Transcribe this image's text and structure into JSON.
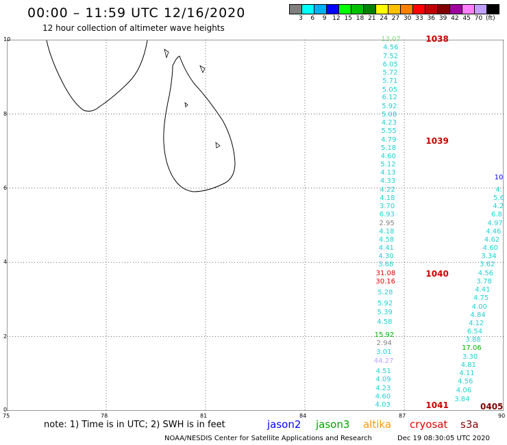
{
  "title": "00:00 – 11:59 UTC 12/16/2020",
  "subtitle": "12 hour collection of altimeter wave heights",
  "legend": {
    "colors": [
      "#808080",
      "#00ffff",
      "#00b0f0",
      "#0000ff",
      "#00ff00",
      "#00c000",
      "#008000",
      "#ffff00",
      "#ffc000",
      "#ff8000",
      "#ff0000",
      "#c00000",
      "#800000",
      "#a000a0",
      "#ff80ff",
      "#c0a0ff",
      "#000000"
    ],
    "labels": [
      "3",
      "6",
      "9",
      "12",
      "15",
      "18",
      "21",
      "24",
      "27",
      "30",
      "33",
      "36",
      "39",
      "42",
      "45",
      "70",
      "(ft)"
    ]
  },
  "axes": {
    "x_ticks": [
      "75",
      "78",
      "81",
      "84",
      "87",
      "90"
    ],
    "y_ticks": [
      "10",
      "8",
      "6",
      "4",
      "2",
      "0"
    ]
  },
  "track_left": [
    {
      "v": "13.07",
      "lat": 9.92,
      "c": "#80e080"
    },
    {
      "v": "4.56",
      "lat": 9.7,
      "c": "#20d0d0"
    },
    {
      "v": "7.52",
      "lat": 9.47,
      "c": "#20d0d0"
    },
    {
      "v": "6.05",
      "lat": 9.25,
      "c": "#20d0d0"
    },
    {
      "v": "5.72",
      "lat": 9.02,
      "c": "#20d0d0"
    },
    {
      "v": "5.71",
      "lat": 8.8,
      "c": "#20d0d0"
    },
    {
      "v": "5.05",
      "lat": 8.57,
      "c": "#20d0d0"
    },
    {
      "v": "6.12",
      "lat": 8.35,
      "c": "#20d0d0"
    },
    {
      "v": "5.92",
      "lat": 8.12,
      "c": "#20d0d0"
    },
    {
      "v": "5.08",
      "lat": 7.9,
      "c": "#20d0d0"
    },
    {
      "v": "4.23",
      "lat": 7.67,
      "c": "#20d0d0"
    },
    {
      "v": "5.55",
      "lat": 7.45,
      "c": "#20d0d0"
    },
    {
      "v": "4.79",
      "lat": 7.22,
      "c": "#20d0d0"
    },
    {
      "v": "5.18",
      "lat": 7.0,
      "c": "#20d0d0"
    },
    {
      "v": "4.60",
      "lat": 6.77,
      "c": "#20d0d0"
    },
    {
      "v": "5.12",
      "lat": 6.55,
      "c": "#20d0d0"
    },
    {
      "v": "4.13",
      "lat": 6.32,
      "c": "#20d0d0"
    },
    {
      "v": "4.33",
      "lat": 6.1,
      "c": "#20d0d0"
    },
    {
      "v": "4.22",
      "lat": 5.87,
      "c": "#20d0d0"
    },
    {
      "v": "4.18",
      "lat": 5.65,
      "c": "#20d0d0"
    },
    {
      "v": "3.70",
      "lat": 5.42,
      "c": "#20d0d0"
    },
    {
      "v": "6.93",
      "lat": 5.2,
      "c": "#20d0d0"
    },
    {
      "v": "2.95",
      "lat": 4.97,
      "c": "#808080"
    },
    {
      "v": "4.18",
      "lat": 4.75,
      "c": "#20d0d0"
    },
    {
      "v": "4.58",
      "lat": 4.52,
      "c": "#20d0d0"
    },
    {
      "v": "4.41",
      "lat": 4.3,
      "c": "#20d0d0"
    },
    {
      "v": "4.30",
      "lat": 4.07,
      "c": "#20d0d0"
    },
    {
      "v": "3.68",
      "lat": 3.85,
      "c": "#20d0d0"
    },
    {
      "v": "31.08",
      "lat": 3.62,
      "c": "#e00000"
    },
    {
      "v": "30.16",
      "lat": 3.4,
      "c": "#e00000"
    },
    {
      "v": "5.28",
      "lat": 3.1,
      "c": "#20d0d0"
    },
    {
      "v": "5.92",
      "lat": 2.8,
      "c": "#20d0d0"
    },
    {
      "v": "5.39",
      "lat": 2.57,
      "c": "#20d0d0"
    },
    {
      "v": "4.58",
      "lat": 2.3,
      "c": "#20d0d0"
    },
    {
      "v": "15.92",
      "lat": 1.95,
      "c": "#00b000"
    },
    {
      "v": "2.94",
      "lat": 1.73,
      "c": "#808080"
    },
    {
      "v": "3.01",
      "lat": 1.5,
      "c": "#20d0d0"
    },
    {
      "v": "44.27",
      "lat": 1.25,
      "c": "#c0a0ff"
    },
    {
      "v": "4.51",
      "lat": 0.98,
      "c": "#20d0d0"
    },
    {
      "v": "4.09",
      "lat": 0.75,
      "c": "#20d0d0"
    },
    {
      "v": "4.23",
      "lat": 0.52,
      "c": "#20d0d0"
    },
    {
      "v": "4.60",
      "lat": 0.3,
      "c": "#20d0d0"
    },
    {
      "v": "4.03",
      "lat": 0.07,
      "c": "#20d0d0"
    }
  ],
  "track_right": [
    {
      "v": "10",
      "lat": 6.2,
      "c": "#0000ff"
    },
    {
      "v": "4.",
      "lat": 5.87,
      "c": "#20d0d0"
    },
    {
      "v": "5.6",
      "lat": 5.65,
      "c": "#20d0d0"
    },
    {
      "v": "4.2",
      "lat": 5.42,
      "c": "#20d0d0"
    },
    {
      "v": "6.8",
      "lat": 5.2,
      "c": "#20d0d0"
    },
    {
      "v": "4.97",
      "lat": 4.97,
      "c": "#20d0d0"
    },
    {
      "v": "4.46",
      "lat": 4.75,
      "c": "#20d0d0"
    },
    {
      "v": "4.62",
      "lat": 4.52,
      "c": "#20d0d0"
    },
    {
      "v": "4.60",
      "lat": 4.3,
      "c": "#20d0d0"
    },
    {
      "v": "3.34",
      "lat": 4.07,
      "c": "#20d0d0"
    },
    {
      "v": "3.62",
      "lat": 3.85,
      "c": "#20d0d0"
    },
    {
      "v": "4.56",
      "lat": 3.62,
      "c": "#20d0d0"
    },
    {
      "v": "3.78",
      "lat": 3.4,
      "c": "#20d0d0"
    },
    {
      "v": "4.41",
      "lat": 3.17,
      "c": "#20d0d0"
    },
    {
      "v": "4.75",
      "lat": 2.95,
      "c": "#20d0d0"
    },
    {
      "v": "4.00",
      "lat": 2.72,
      "c": "#20d0d0"
    },
    {
      "v": "4.84",
      "lat": 2.5,
      "c": "#20d0d0"
    },
    {
      "v": "4.12",
      "lat": 2.27,
      "c": "#20d0d0"
    },
    {
      "v": "6.54",
      "lat": 2.05,
      "c": "#20d0d0"
    },
    {
      "v": "3.88",
      "lat": 1.82,
      "c": "#20d0d0"
    },
    {
      "v": "17.06",
      "lat": 1.6,
      "c": "#00b000"
    },
    {
      "v": "3.30",
      "lat": 1.37,
      "c": "#20d0d0"
    },
    {
      "v": "4.81",
      "lat": 1.15,
      "c": "#20d0d0"
    },
    {
      "v": "4.11",
      "lat": 0.92,
      "c": "#20d0d0"
    },
    {
      "v": "4.56",
      "lat": 0.7,
      "c": "#20d0d0"
    },
    {
      "v": "4.06",
      "lat": 0.47,
      "c": "#20d0d0"
    },
    {
      "v": "3.84",
      "lat": 0.22,
      "c": "#20d0d0"
    }
  ],
  "pass_times": [
    {
      "t": "1038",
      "lat": 9.95
    },
    {
      "t": "1039",
      "lat": 7.2
    },
    {
      "t": "1040",
      "lat": 3.62
    },
    {
      "t": "1041",
      "lat": 0.07
    }
  ],
  "note": "note: 1) Time is in UTC; 2) SWH is in feet",
  "satellites": [
    {
      "name": "jason2",
      "color": "#0000ff"
    },
    {
      "name": "jason3",
      "color": "#00a000"
    },
    {
      "name": "altika",
      "color": "#ff9900"
    },
    {
      "name": "cryosat",
      "color": "#e00000"
    },
    {
      "name": "s3a",
      "color": "#800000"
    }
  ],
  "right_pass_time": "0405",
  "credit": "NOAA/NESDIS Center for Satellite Applications and Research",
  "timestamp": "Dec 19 08:30:05 UTC 2020"
}
